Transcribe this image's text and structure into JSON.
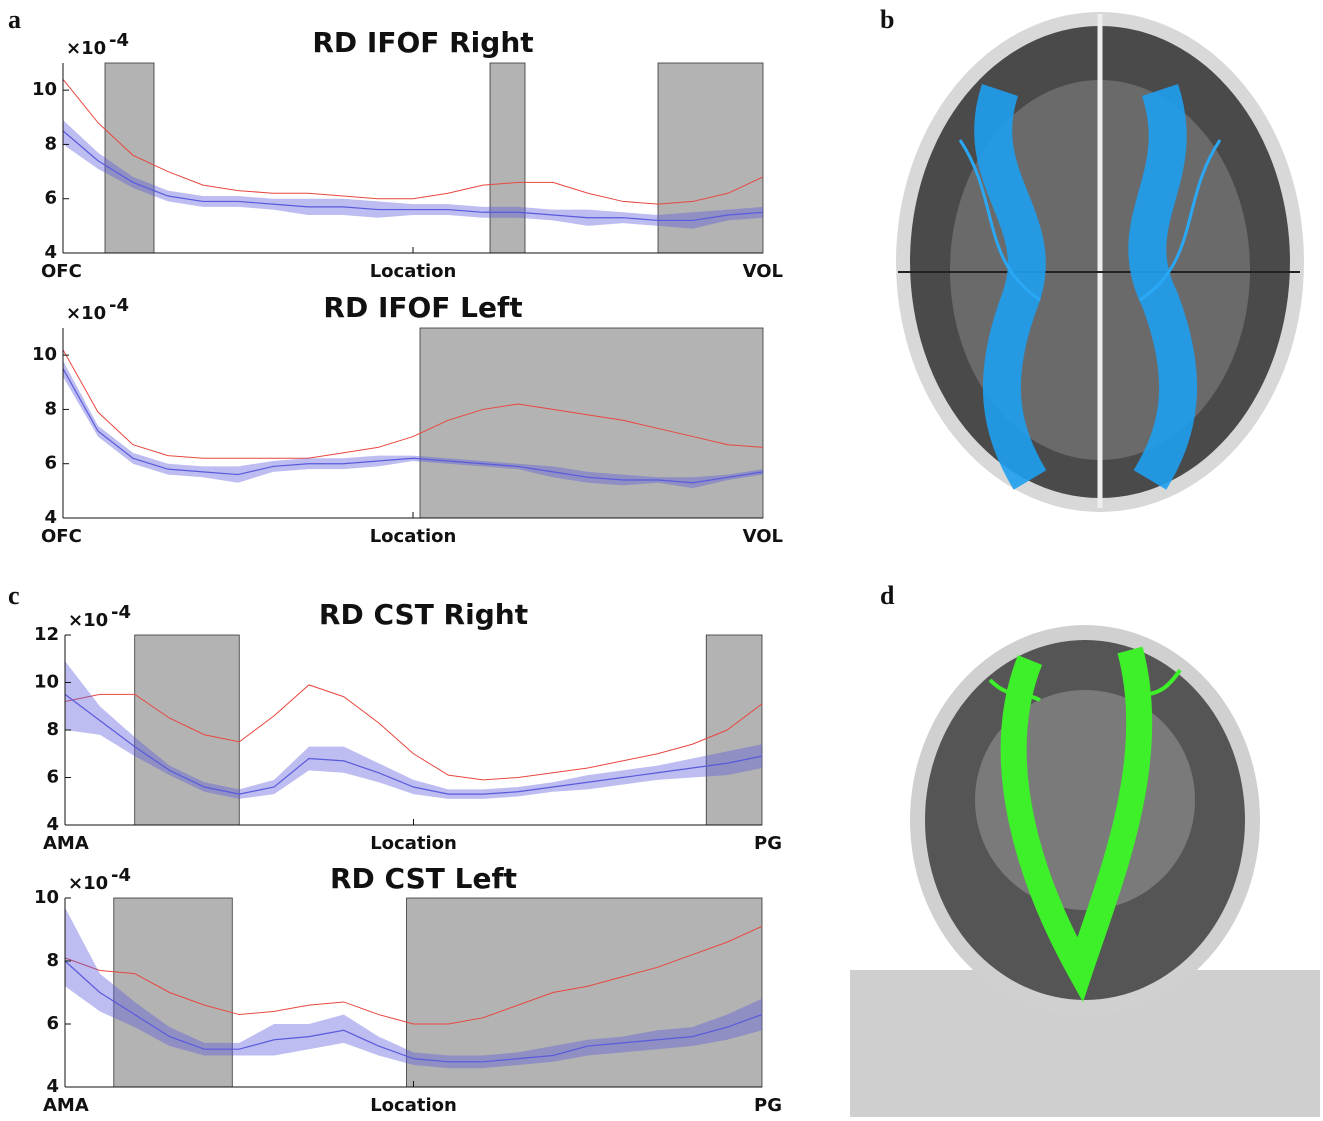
{
  "panel_labels": [
    "a",
    "b",
    "c",
    "d"
  ],
  "chart_data": [
    {
      "type": "band-line",
      "title": "RD IFOF Right",
      "xlabel": "Location",
      "x_start_label": "OFC",
      "x_end_label": "VOL",
      "y_multiplier": "×10",
      "y_exponent": "-4",
      "xlim": [
        0,
        100
      ],
      "ylim": [
        4,
        11
      ],
      "yticks": [
        4,
        6,
        8,
        10
      ],
      "x": [
        0,
        5,
        10,
        15,
        20,
        25,
        30,
        35,
        40,
        45,
        50,
        55,
        60,
        65,
        70,
        75,
        80,
        85,
        90,
        95,
        100
      ],
      "shaded": [
        [
          6,
          13
        ],
        [
          61,
          66
        ],
        [
          85,
          100
        ]
      ],
      "shade_color": "#b3b3b3",
      "series": [
        {
          "color": "#e8473f",
          "values": [
            10.4,
            8.8,
            7.6,
            7.0,
            6.5,
            6.3,
            6.2,
            6.2,
            6.1,
            6.0,
            6.0,
            6.2,
            6.5,
            6.6,
            6.6,
            6.2,
            5.9,
            5.8,
            5.9,
            6.2,
            6.8
          ]
        },
        {
          "color": "#5a5adc",
          "values": [
            8.5,
            7.4,
            6.6,
            6.1,
            5.9,
            5.9,
            5.8,
            5.7,
            5.7,
            5.6,
            5.6,
            5.6,
            5.5,
            5.5,
            5.4,
            5.3,
            5.3,
            5.2,
            5.2,
            5.4,
            5.5
          ],
          "upper": [
            8.9,
            7.7,
            6.8,
            6.3,
            6.1,
            6.1,
            6.0,
            6.0,
            6.0,
            5.9,
            5.8,
            5.8,
            5.7,
            5.7,
            5.6,
            5.6,
            5.5,
            5.4,
            5.5,
            5.6,
            5.7
          ],
          "lower": [
            8.0,
            7.1,
            6.4,
            5.9,
            5.7,
            5.7,
            5.6,
            5.4,
            5.4,
            5.3,
            5.4,
            5.4,
            5.3,
            5.3,
            5.2,
            5.0,
            5.1,
            5.0,
            4.9,
            5.2,
            5.3
          ]
        }
      ]
    },
    {
      "type": "band-line",
      "title": "RD IFOF Left",
      "xlabel": "Location",
      "x_start_label": "OFC",
      "x_end_label": "VOL",
      "y_multiplier": "×10",
      "y_exponent": "-4",
      "xlim": [
        0,
        100
      ],
      "ylim": [
        4,
        11
      ],
      "yticks": [
        4,
        6,
        8,
        10
      ],
      "x": [
        0,
        5,
        10,
        15,
        20,
        25,
        30,
        35,
        40,
        45,
        50,
        55,
        60,
        65,
        70,
        75,
        80,
        85,
        90,
        95,
        100
      ],
      "shaded": [
        [
          51,
          100
        ]
      ],
      "shade_color": "#b3b3b3",
      "series": [
        {
          "color": "#e8473f",
          "values": [
            10.2,
            7.9,
            6.7,
            6.3,
            6.2,
            6.2,
            6.2,
            6.2,
            6.4,
            6.6,
            7.0,
            7.6,
            8.0,
            8.2,
            8.0,
            7.8,
            7.6,
            7.3,
            7.0,
            6.7,
            6.6
          ]
        },
        {
          "color": "#5a5adc",
          "values": [
            9.5,
            7.2,
            6.2,
            5.8,
            5.7,
            5.6,
            5.9,
            6.0,
            6.0,
            6.1,
            6.2,
            6.1,
            6.0,
            5.9,
            5.7,
            5.5,
            5.4,
            5.4,
            5.3,
            5.5,
            5.7
          ],
          "upper": [
            9.8,
            7.4,
            6.4,
            6.0,
            5.9,
            5.9,
            6.1,
            6.2,
            6.2,
            6.3,
            6.3,
            6.2,
            6.1,
            6.0,
            5.9,
            5.7,
            5.6,
            5.5,
            5.5,
            5.6,
            5.8
          ],
          "lower": [
            9.2,
            7.0,
            6.0,
            5.6,
            5.5,
            5.3,
            5.7,
            5.8,
            5.8,
            5.9,
            6.1,
            6.0,
            5.9,
            5.8,
            5.5,
            5.3,
            5.2,
            5.3,
            5.1,
            5.4,
            5.6
          ]
        }
      ]
    },
    {
      "type": "band-line",
      "title": "RD CST Right",
      "xlabel": "Location",
      "x_start_label": "AMA",
      "x_end_label": "PG",
      "y_multiplier": "×10",
      "y_exponent": "-4",
      "xlim": [
        0,
        100
      ],
      "ylim": [
        4,
        12
      ],
      "yticks": [
        4,
        6,
        8,
        10,
        12
      ],
      "x": [
        0,
        5,
        10,
        15,
        20,
        25,
        30,
        35,
        40,
        45,
        50,
        55,
        60,
        65,
        70,
        75,
        80,
        85,
        90,
        95,
        100
      ],
      "shaded": [
        [
          10,
          25
        ],
        [
          92,
          100
        ]
      ],
      "shade_color": "#b3b3b3",
      "series": [
        {
          "color": "#e8473f",
          "values": [
            9.2,
            9.5,
            9.5,
            8.5,
            7.8,
            7.5,
            8.6,
            9.9,
            9.4,
            8.3,
            7.0,
            6.1,
            5.9,
            6.0,
            6.2,
            6.4,
            6.7,
            7.0,
            7.4,
            8.0,
            9.1
          ]
        },
        {
          "color": "#5a5adc",
          "values": [
            9.5,
            8.4,
            7.3,
            6.3,
            5.6,
            5.3,
            5.6,
            6.8,
            6.7,
            6.2,
            5.6,
            5.3,
            5.3,
            5.4,
            5.6,
            5.8,
            6.0,
            6.2,
            6.4,
            6.6,
            6.9
          ],
          "upper": [
            10.9,
            9.0,
            7.7,
            6.5,
            5.8,
            5.5,
            5.9,
            7.3,
            7.3,
            6.6,
            5.9,
            5.5,
            5.5,
            5.6,
            5.8,
            6.1,
            6.3,
            6.5,
            6.8,
            7.1,
            7.4
          ],
          "lower": [
            8.0,
            7.8,
            6.9,
            6.1,
            5.4,
            5.1,
            5.3,
            6.3,
            6.2,
            5.8,
            5.3,
            5.1,
            5.1,
            5.2,
            5.4,
            5.5,
            5.7,
            5.9,
            6.0,
            6.1,
            6.4
          ]
        }
      ]
    },
    {
      "type": "band-line",
      "title": "RD CST Left",
      "xlabel": "Location",
      "x_start_label": "AMA",
      "x_end_label": "PG",
      "y_multiplier": "×10",
      "y_exponent": "-4",
      "xlim": [
        0,
        100
      ],
      "ylim": [
        4,
        10
      ],
      "yticks": [
        4,
        6,
        8,
        10
      ],
      "x": [
        0,
        5,
        10,
        15,
        20,
        25,
        30,
        35,
        40,
        45,
        50,
        55,
        60,
        65,
        70,
        75,
        80,
        85,
        90,
        95,
        100
      ],
      "shaded": [
        [
          7,
          24
        ],
        [
          49,
          100
        ]
      ],
      "shade_color": "#b3b3b3",
      "series": [
        {
          "color": "#e8473f",
          "values": [
            8.1,
            7.7,
            7.6,
            7.0,
            6.6,
            6.3,
            6.4,
            6.6,
            6.7,
            6.3,
            6.0,
            6.0,
            6.2,
            6.6,
            7.0,
            7.2,
            7.5,
            7.8,
            8.2,
            8.6,
            9.1
          ]
        },
        {
          "color": "#5a5adc",
          "values": [
            8.0,
            7.0,
            6.3,
            5.6,
            5.2,
            5.2,
            5.5,
            5.6,
            5.8,
            5.3,
            4.9,
            4.8,
            4.8,
            4.9,
            5.0,
            5.3,
            5.4,
            5.5,
            5.6,
            5.9,
            6.3
          ],
          "upper": [
            9.7,
            7.6,
            6.7,
            5.9,
            5.4,
            5.4,
            6.0,
            6.0,
            6.3,
            5.6,
            5.1,
            5.0,
            5.0,
            5.1,
            5.3,
            5.5,
            5.6,
            5.8,
            5.9,
            6.3,
            6.8
          ],
          "lower": [
            7.2,
            6.4,
            5.9,
            5.3,
            5.0,
            5.0,
            5.0,
            5.2,
            5.4,
            5.0,
            4.7,
            4.6,
            4.6,
            4.7,
            4.8,
            5.0,
            5.1,
            5.2,
            5.3,
            5.5,
            5.8
          ]
        }
      ]
    }
  ]
}
